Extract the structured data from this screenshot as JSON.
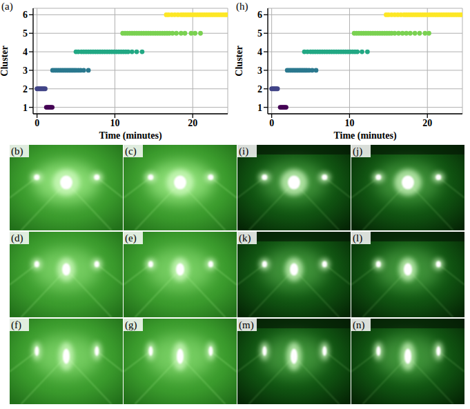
{
  "chart_data": [
    {
      "type": "scatter",
      "title": "(a)",
      "x_label": "Time (minutes)",
      "y_label": "Cluster",
      "xlim": [
        -0.5,
        24.5
      ],
      "xticks": [
        0,
        10,
        20
      ],
      "ylim": [
        0.65,
        6.35
      ],
      "yticks": [
        1,
        2,
        3,
        4,
        5,
        6
      ],
      "grid": true,
      "marker": "circle",
      "series": [
        {
          "color": "#440154",
          "x": [
            1.2,
            1.35,
            1.5,
            1.65,
            1.8,
            1.95
          ],
          "values": [
            1,
            1,
            1,
            1,
            1,
            1
          ]
        },
        {
          "color": "#414487",
          "x": [
            0,
            0.15,
            0.3,
            0.45,
            0.6,
            0.75,
            0.9,
            1.05
          ],
          "values": [
            2,
            2,
            2,
            2,
            2,
            2,
            2,
            2
          ]
        },
        {
          "color": "#2a788e",
          "x": [
            2.0,
            2.25,
            2.5,
            2.75,
            3.0,
            3.25,
            3.5,
            3.75,
            4.0,
            4.25,
            4.5,
            4.75,
            5.0,
            5.3,
            5.6,
            6.0,
            6.6
          ],
          "values": [
            3,
            3,
            3,
            3,
            3,
            3,
            3,
            3,
            3,
            3,
            3,
            3,
            3,
            3,
            3,
            3,
            3
          ]
        },
        {
          "color": "#22a884",
          "x": [
            5.0,
            5.3,
            5.7,
            6.0,
            6.3,
            6.6,
            6.9,
            7.2,
            7.5,
            7.8,
            8.1,
            8.4,
            8.7,
            9.0,
            9.3,
            9.6,
            9.9,
            10.2,
            10.5,
            10.8,
            11.1,
            11.4,
            11.7,
            12.2,
            12.8,
            13.5
          ],
          "values": [
            4,
            4,
            4,
            4,
            4,
            4,
            4,
            4,
            4,
            4,
            4,
            4,
            4,
            4,
            4,
            4,
            4,
            4,
            4,
            4,
            4,
            4,
            4,
            4,
            4,
            4
          ]
        },
        {
          "color": "#7ad151",
          "x": [
            11.0,
            11.3,
            11.6,
            11.9,
            12.2,
            12.5,
            12.8,
            13.1,
            13.4,
            13.7,
            14.0,
            14.3,
            14.6,
            14.9,
            15.2,
            15.5,
            15.8,
            16.1,
            16.4,
            16.7,
            17.0,
            17.4,
            17.9,
            18.5,
            19.0,
            19.8,
            20.3,
            21.0
          ],
          "values": [
            5,
            5,
            5,
            5,
            5,
            5,
            5,
            5,
            5,
            5,
            5,
            5,
            5,
            5,
            5,
            5,
            5,
            5,
            5,
            5,
            5,
            5,
            5,
            5,
            5,
            5,
            5,
            5
          ]
        },
        {
          "color": "#fde725",
          "x": [
            16.6,
            16.9,
            17.3,
            17.7,
            18.1,
            18.5,
            18.8,
            19.1,
            19.4,
            19.7,
            20.0,
            20.3,
            20.6,
            20.9,
            21.2,
            21.5,
            21.8,
            22.1,
            22.4,
            22.7,
            23.0,
            23.3,
            23.6,
            23.9,
            24.2,
            24.4
          ],
          "values": [
            6,
            6,
            6,
            6,
            6,
            6,
            6,
            6,
            6,
            6,
            6,
            6,
            6,
            6,
            6,
            6,
            6,
            6,
            6,
            6,
            6,
            6,
            6,
            6,
            6,
            6
          ]
        }
      ]
    },
    {
      "type": "scatter",
      "title": "(h)",
      "x_label": "Time (minutes)",
      "y_label": "Cluster",
      "xlim": [
        -0.5,
        24.5
      ],
      "xticks": [
        0,
        10,
        20
      ],
      "ylim": [
        0.65,
        6.35
      ],
      "yticks": [
        1,
        2,
        3,
        4,
        5,
        6
      ],
      "grid": true,
      "marker": "circle",
      "series": [
        {
          "color": "#440154",
          "x": [
            1.1,
            1.25,
            1.4,
            1.55,
            1.7,
            1.85
          ],
          "values": [
            1,
            1,
            1,
            1,
            1,
            1
          ]
        },
        {
          "color": "#414487",
          "x": [
            0,
            0.15,
            0.3,
            0.45,
            0.6,
            0.75
          ],
          "values": [
            2,
            2,
            2,
            2,
            2,
            2
          ]
        },
        {
          "color": "#2a788e",
          "x": [
            2.0,
            2.25,
            2.5,
            2.75,
            3.0,
            3.25,
            3.5,
            3.75,
            4.0,
            4.25,
            4.5,
            4.8,
            5.2,
            5.7
          ],
          "values": [
            3,
            3,
            3,
            3,
            3,
            3,
            3,
            3,
            3,
            3,
            3,
            3,
            3,
            3
          ]
        },
        {
          "color": "#22a884",
          "x": [
            4.2,
            4.6,
            5.0,
            5.3,
            5.6,
            5.9,
            6.2,
            6.5,
            6.8,
            7.1,
            7.4,
            7.7,
            8.0,
            8.3,
            8.6,
            8.9,
            9.2,
            9.5,
            9.8,
            10.1,
            10.4,
            10.7,
            11.0,
            11.6,
            12.3
          ],
          "values": [
            4,
            4,
            4,
            4,
            4,
            4,
            4,
            4,
            4,
            4,
            4,
            4,
            4,
            4,
            4,
            4,
            4,
            4,
            4,
            4,
            4,
            4,
            4,
            4,
            4
          ]
        },
        {
          "color": "#7ad151",
          "x": [
            10.6,
            10.9,
            11.2,
            11.5,
            11.8,
            12.1,
            12.4,
            12.7,
            13.0,
            13.3,
            13.6,
            13.9,
            14.2,
            14.5,
            14.8,
            15.1,
            15.4,
            15.8,
            16.3,
            16.8,
            17.3,
            17.8,
            18.4,
            19.0,
            19.7,
            20.2
          ],
          "values": [
            5,
            5,
            5,
            5,
            5,
            5,
            5,
            5,
            5,
            5,
            5,
            5,
            5,
            5,
            5,
            5,
            5,
            5,
            5,
            5,
            5,
            5,
            5,
            5,
            5,
            5
          ]
        },
        {
          "color": "#fde725",
          "x": [
            14.7,
            15.0,
            15.4,
            15.8,
            16.2,
            16.6,
            17.0,
            17.3,
            17.6,
            17.9,
            18.2,
            18.5,
            18.8,
            19.1,
            19.4,
            19.7,
            20.0,
            20.3,
            20.6,
            20.9,
            21.2,
            21.5,
            21.8,
            22.1,
            22.4,
            22.7,
            23.0,
            23.3,
            23.6,
            23.9,
            24.2,
            24.4
          ],
          "values": [
            6,
            6,
            6,
            6,
            6,
            6,
            6,
            6,
            6,
            6,
            6,
            6,
            6,
            6,
            6,
            6,
            6,
            6,
            6,
            6,
            6,
            6,
            6,
            6,
            6,
            6,
            6,
            6,
            6,
            6,
            6,
            6
          ]
        }
      ]
    }
  ],
  "images": {
    "panels": [
      "(b)",
      "(c)",
      "(i)",
      "(j)",
      "(d)",
      "(e)",
      "(k)",
      "(l)",
      "(f)",
      "(g)",
      "(m)",
      "(n)"
    ]
  }
}
